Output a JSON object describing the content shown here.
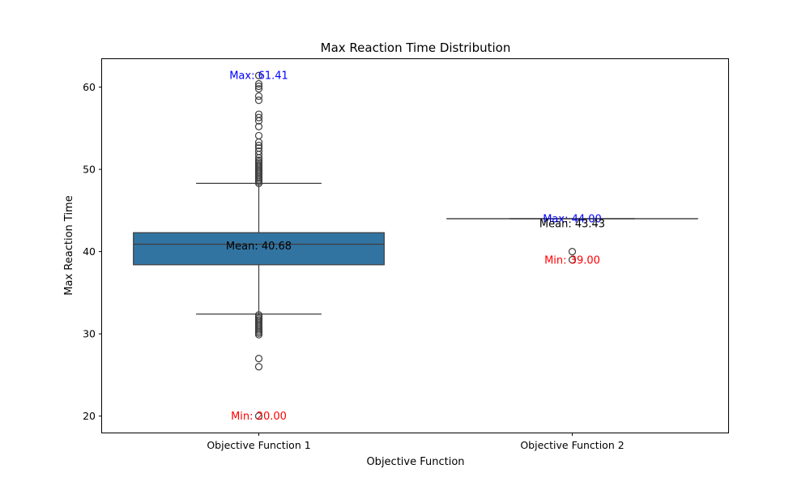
{
  "chart_data": {
    "type": "box",
    "title": "Max Reaction Time Distribution",
    "xlabel": "Objective Function",
    "ylabel": "Max Reaction Time",
    "ylim": [
      18,
      63.5
    ],
    "yticks": [
      20,
      30,
      40,
      50,
      60
    ],
    "grid": false,
    "colors": {
      "box_fill": "#3274a1",
      "line": "#3d3d3d",
      "max_label": "#0000ff",
      "min_label": "#ff0000",
      "mean_label": "#000000"
    },
    "categories": [
      "Objective Function 1",
      "Objective Function 2"
    ],
    "boxes": [
      {
        "category": "Objective Function 1",
        "q1": 38.4,
        "median": 40.9,
        "q3": 42.3,
        "whisker_low": 32.4,
        "whisker_high": 48.3,
        "mean": 40.68,
        "min": 20.0,
        "max": 61.41,
        "mean_label": "Mean: 40.68",
        "max_label": "Max: 61.41",
        "min_label": "Min: 20.00",
        "outliers": [
          48.3,
          48.5,
          48.7,
          48.9,
          49.1,
          49.3,
          49.5,
          49.7,
          49.9,
          50.1,
          50.3,
          50.5,
          50.7,
          50.9,
          51.1,
          51.4,
          51.8,
          52.2,
          52.6,
          52.9,
          53.3,
          54.1,
          55.2,
          55.9,
          56.3,
          56.7,
          58.4,
          58.9,
          59.8,
          60.1,
          60.4,
          61.41,
          32.3,
          32.1,
          31.9,
          31.7,
          31.5,
          31.3,
          31.1,
          30.9,
          30.7,
          30.5,
          30.3,
          30.1,
          29.9,
          27.0,
          26.0,
          20.0
        ]
      },
      {
        "category": "Objective Function 2",
        "q1": 44.0,
        "median": 44.0,
        "q3": 44.0,
        "whisker_low": 44.0,
        "whisker_high": 44.0,
        "mean": 43.43,
        "min": 39.0,
        "max": 44.0,
        "mean_label": "Mean: 43.43",
        "max_label": "Max: 44.00",
        "min_label": "Min: 39.00",
        "outliers": [
          40.0,
          39.0
        ]
      }
    ]
  }
}
